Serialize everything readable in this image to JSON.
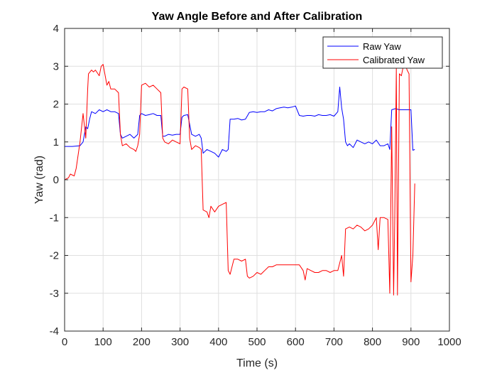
{
  "chart_data": {
    "type": "line",
    "title": "Yaw Angle Before and After Calibration",
    "xlabel": "Time (s)",
    "ylabel": "Yaw (rad)",
    "xlim": [
      0,
      1000
    ],
    "ylim": [
      -4,
      4
    ],
    "xticks": [
      0,
      100,
      200,
      300,
      400,
      500,
      600,
      700,
      800,
      900,
      1000
    ],
    "yticks": [
      -4,
      -3,
      -2,
      -1,
      0,
      1,
      2,
      3,
      4
    ],
    "grid": true,
    "legend_position": "top-right",
    "series": [
      {
        "name": "Raw Yaw",
        "color": "#0000ff",
        "x": [
          0,
          20,
          40,
          48,
          55,
          60,
          65,
          70,
          80,
          90,
          100,
          110,
          120,
          130,
          140,
          145,
          150,
          160,
          170,
          180,
          190,
          195,
          200,
          210,
          220,
          230,
          240,
          250,
          255,
          260,
          270,
          280,
          290,
          300,
          305,
          310,
          320,
          330,
          340,
          350,
          355,
          360,
          370,
          380,
          390,
          400,
          410,
          420,
          425,
          430,
          440,
          450,
          460,
          470,
          480,
          490,
          500,
          510,
          520,
          530,
          540,
          550,
          560,
          570,
          580,
          590,
          600,
          610,
          620,
          630,
          640,
          650,
          660,
          670,
          680,
          690,
          700,
          710,
          715,
          720,
          725,
          730,
          735,
          740,
          750,
          760,
          770,
          780,
          790,
          800,
          810,
          820,
          830,
          840,
          845,
          850,
          860,
          870,
          880,
          890,
          900,
          905,
          910
        ],
        "y": [
          0.88,
          0.88,
          0.9,
          1.0,
          1.4,
          1.35,
          1.6,
          1.8,
          1.75,
          1.85,
          1.8,
          1.85,
          1.8,
          1.8,
          1.75,
          1.2,
          1.1,
          1.15,
          1.2,
          1.1,
          1.2,
          1.7,
          1.75,
          1.7,
          1.72,
          1.75,
          1.7,
          1.7,
          1.15,
          1.15,
          1.2,
          1.18,
          1.2,
          1.2,
          1.65,
          1.7,
          1.72,
          1.2,
          1.15,
          1.2,
          1.1,
          0.7,
          0.8,
          0.75,
          0.7,
          0.6,
          0.8,
          0.75,
          0.8,
          1.6,
          1.6,
          1.62,
          1.58,
          1.6,
          1.78,
          1.8,
          1.78,
          1.8,
          1.8,
          1.85,
          1.82,
          1.88,
          1.9,
          1.92,
          1.9,
          1.92,
          1.95,
          1.7,
          1.68,
          1.7,
          1.7,
          1.68,
          1.72,
          1.7,
          1.7,
          1.72,
          1.68,
          1.8,
          2.45,
          1.9,
          1.6,
          1.0,
          0.9,
          0.95,
          0.85,
          1.05,
          1.0,
          0.95,
          1.0,
          0.95,
          1.05,
          0.9,
          0.9,
          0.95,
          0.8,
          1.85,
          1.88,
          1.85,
          1.85,
          1.85,
          1.85,
          0.78,
          0.8
        ]
      },
      {
        "name": "Calibrated Yaw",
        "color": "#ff0000",
        "x": [
          0,
          10,
          15,
          25,
          30,
          40,
          48,
          55,
          60,
          62,
          70,
          75,
          80,
          90,
          95,
          100,
          110,
          115,
          120,
          130,
          140,
          145,
          150,
          160,
          170,
          180,
          185,
          190,
          195,
          200,
          210,
          220,
          230,
          240,
          250,
          255,
          260,
          270,
          280,
          290,
          300,
          305,
          310,
          320,
          325,
          330,
          340,
          350,
          355,
          360,
          370,
          375,
          380,
          390,
          400,
          410,
          420,
          425,
          430,
          440,
          450,
          460,
          470,
          475,
          480,
          490,
          500,
          510,
          520,
          530,
          540,
          550,
          560,
          570,
          580,
          590,
          600,
          610,
          620,
          625,
          630,
          640,
          650,
          660,
          670,
          680,
          690,
          700,
          710,
          715,
          720,
          725,
          730,
          740,
          750,
          760,
          770,
          780,
          790,
          800,
          810,
          815,
          820,
          830,
          840,
          845,
          850,
          855,
          858,
          862,
          865,
          870,
          875,
          880,
          885,
          890,
          895,
          900,
          905,
          910
        ],
        "y": [
          0.0,
          0.05,
          0.15,
          0.1,
          0.3,
          1.0,
          1.75,
          1.1,
          2.4,
          2.8,
          2.9,
          2.85,
          2.9,
          2.75,
          3.0,
          3.05,
          2.5,
          2.6,
          2.4,
          2.4,
          2.3,
          1.2,
          0.9,
          0.95,
          0.85,
          0.8,
          0.75,
          0.9,
          1.2,
          2.5,
          2.55,
          2.45,
          2.5,
          2.4,
          2.3,
          1.1,
          1.0,
          0.95,
          1.05,
          1.0,
          0.95,
          2.4,
          2.45,
          2.4,
          1.1,
          0.8,
          0.9,
          0.85,
          0.8,
          -0.8,
          -0.85,
          -1.0,
          -0.7,
          -0.85,
          -0.7,
          -0.65,
          -0.6,
          -2.4,
          -2.5,
          -2.1,
          -2.1,
          -2.15,
          -2.1,
          -2.55,
          -2.6,
          -2.55,
          -2.45,
          -2.5,
          -2.4,
          -2.3,
          -2.3,
          -2.25,
          -2.25,
          -2.25,
          -2.25,
          -2.25,
          -2.25,
          -2.25,
          -2.4,
          -2.65,
          -2.35,
          -2.4,
          -2.45,
          -2.45,
          -2.4,
          -2.4,
          -2.45,
          -2.4,
          -2.4,
          -2.2,
          -2.0,
          -2.55,
          -1.3,
          -1.25,
          -1.3,
          -1.2,
          -1.25,
          -1.35,
          -1.3,
          -1.2,
          -1.0,
          -1.85,
          -1.0,
          -1.0,
          -1.05,
          -3.0,
          1.4,
          -3.05,
          -1.0,
          2.95,
          -3.05,
          2.8,
          2.75,
          3.0,
          3.05,
          2.9,
          2.8,
          -2.7,
          -2.0,
          -0.1
        ]
      }
    ]
  }
}
